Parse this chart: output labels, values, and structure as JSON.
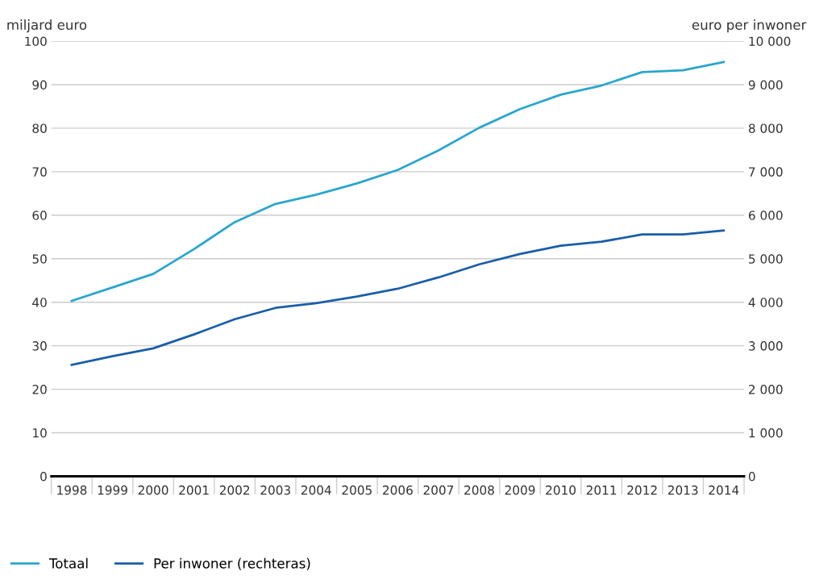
{
  "chart_data": {
    "type": "line",
    "ylabel": "miljard euro",
    "y2label": "euro per inwoner",
    "categories": [
      "1998",
      "1999",
      "2000",
      "2001",
      "2002",
      "2003",
      "2004",
      "2005",
      "2006",
      "2007",
      "2008",
      "2009",
      "2010",
      "2011",
      "2012",
      "2013",
      "2014"
    ],
    "series": [
      {
        "name": "Totaal",
        "color": "#2ba6cb",
        "values": [
          40.3,
          43.4,
          46.5,
          52.2,
          58.4,
          62.6,
          64.7,
          67.3,
          70.4,
          74.9,
          80.1,
          84.4,
          87.7,
          89.8,
          92.9,
          93.3,
          95.2
        ]
      },
      {
        "name": "Per inwoner (rechteras)",
        "color": "#1a5ea8",
        "axis": "y2",
        "values": [
          2560,
          2760,
          2940,
          3260,
          3610,
          3870,
          3980,
          4130,
          4310,
          4570,
          4870,
          5110,
          5300,
          5390,
          5560,
          5560,
          5650
        ]
      }
    ],
    "ylim": [
      0,
      100
    ],
    "yticks": [
      0,
      10,
      20,
      30,
      40,
      50,
      60,
      70,
      80,
      90,
      100
    ],
    "y2lim": [
      0,
      10000
    ],
    "y2ticks": [
      0,
      {
        "value": 1000,
        "label": "1 000"
      },
      {
        "value": 2000,
        "label": "2 000"
      },
      {
        "value": 3000,
        "label": "3 000"
      },
      {
        "value": 4000,
        "label": "4 000"
      },
      {
        "value": 5000,
        "label": "5 000"
      },
      {
        "value": 6000,
        "label": "6 000"
      },
      {
        "value": 7000,
        "label": "7 000"
      },
      {
        "value": 8000,
        "label": "8 000"
      },
      {
        "value": 9000,
        "label": "9 000"
      },
      {
        "value": 10000,
        "label": "10 000"
      }
    ],
    "grid": "y",
    "legend": "bottom left",
    "marker": "none",
    "line_style": "solid"
  }
}
